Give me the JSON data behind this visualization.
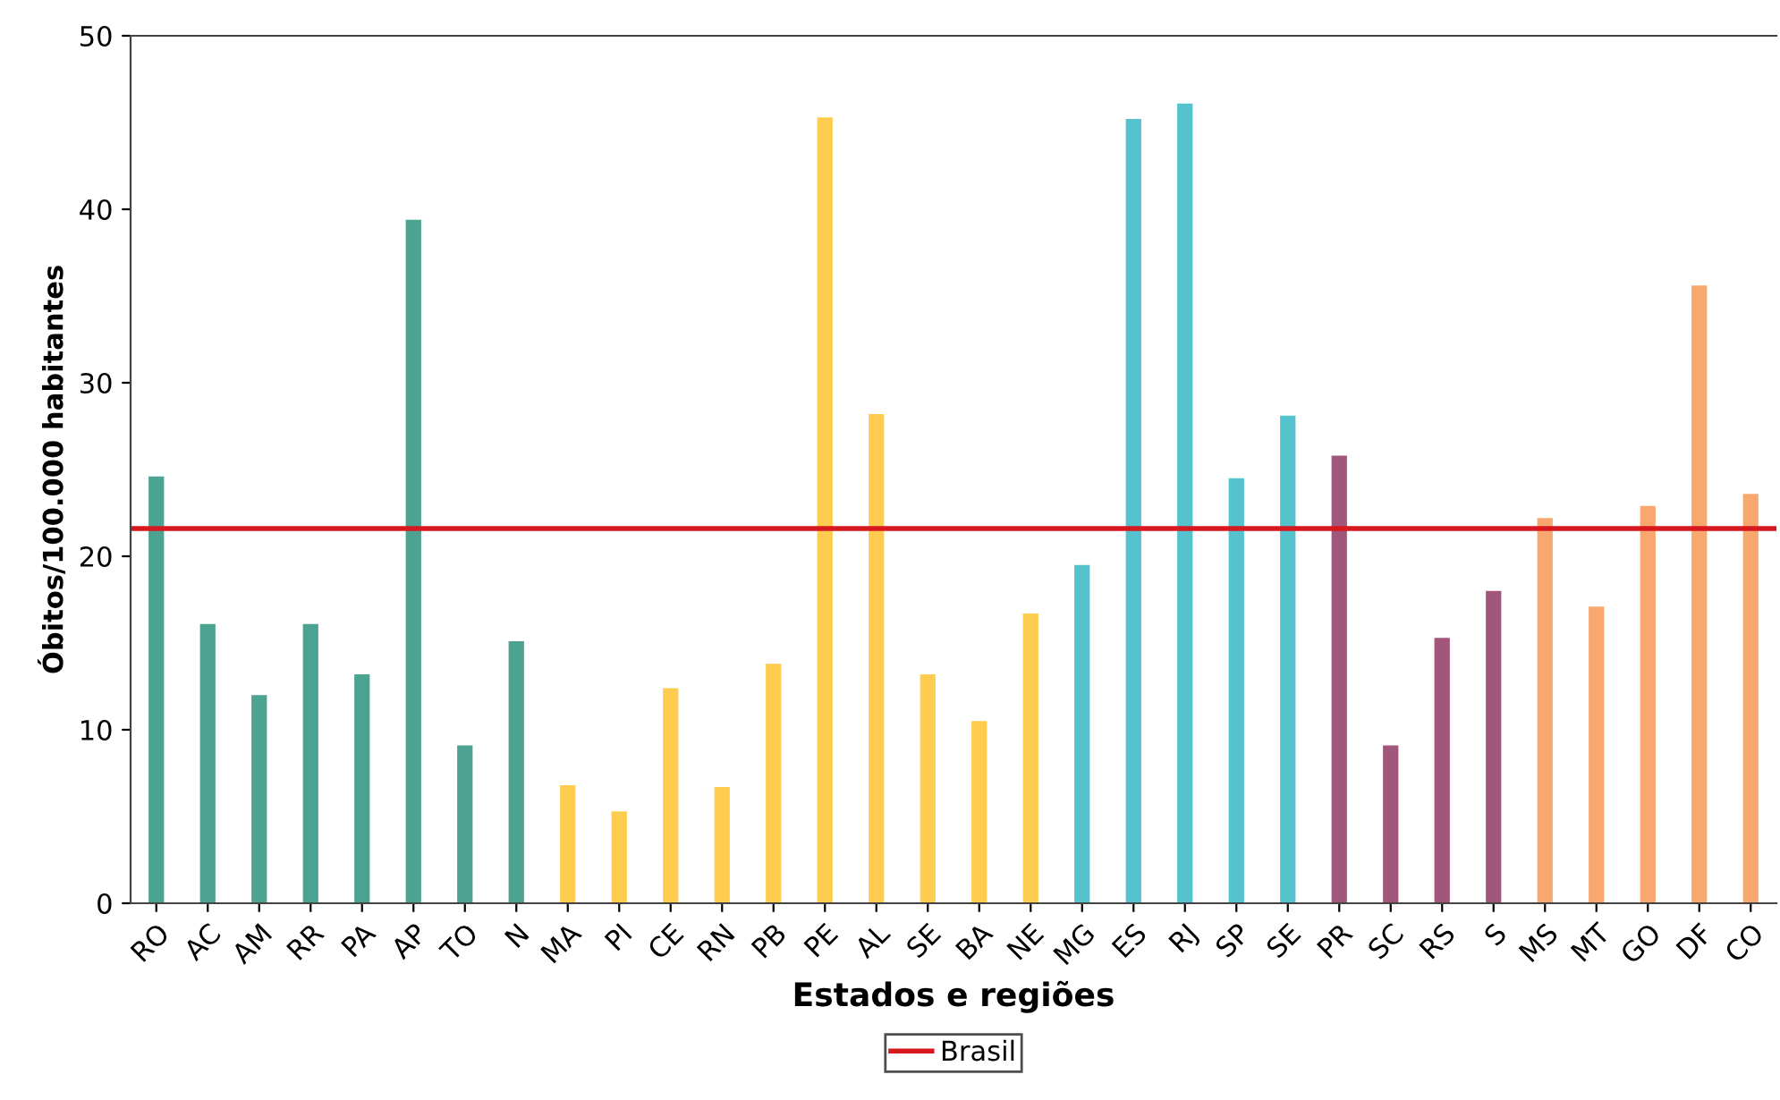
{
  "chart_data": {
    "type": "bar",
    "xlabel": "Estados e regiões",
    "ylabel": "Óbitos/100.000 habitantes",
    "categories": [
      "RO",
      "AC",
      "AM",
      "RR",
      "PA",
      "AP",
      "TO",
      "N",
      "MA",
      "PI",
      "CE",
      "RN",
      "PB",
      "PE",
      "AL",
      "SE",
      "BA",
      "NE",
      "MG",
      "ES",
      "RJ",
      "SP",
      "SE",
      "PR",
      "SC",
      "RS",
      "S",
      "MS",
      "MT",
      "GO",
      "DF",
      "CO"
    ],
    "values": [
      24.6,
      16.1,
      12.0,
      16.1,
      13.2,
      39.4,
      9.1,
      15.1,
      6.8,
      5.3,
      12.4,
      6.7,
      13.8,
      45.3,
      28.2,
      13.2,
      10.5,
      16.7,
      19.5,
      45.2,
      46.1,
      24.5,
      28.1,
      25.8,
      9.1,
      15.3,
      18.0,
      22.2,
      17.1,
      22.9,
      35.6,
      23.6
    ],
    "colors": [
      "#4ca391",
      "#4ca391",
      "#4ca391",
      "#4ca391",
      "#4ca391",
      "#4ca391",
      "#4ca391",
      "#4ca391",
      "#fecd4f",
      "#fecd4f",
      "#fecd4f",
      "#fecd4f",
      "#fecd4f",
      "#fecd4f",
      "#fecd4f",
      "#fecd4f",
      "#fecd4f",
      "#fecd4f",
      "#54c3cd",
      "#54c3cd",
      "#54c3cd",
      "#54c3cd",
      "#54c3cd",
      "#a1567b",
      "#a1567b",
      "#a1567b",
      "#a1567b",
      "#f8a76f",
      "#f8a76f",
      "#f8a76f",
      "#f8a76f",
      "#f8a76f"
    ],
    "ylim": [
      0,
      50
    ],
    "yticks": [
      0,
      10,
      20,
      30,
      40,
      50
    ],
    "ref_lines": [
      {
        "axis": "y",
        "value": 21.6,
        "label": "Brasil",
        "color": "#d7191f"
      }
    ],
    "legend": "bottom",
    "grid": false
  }
}
